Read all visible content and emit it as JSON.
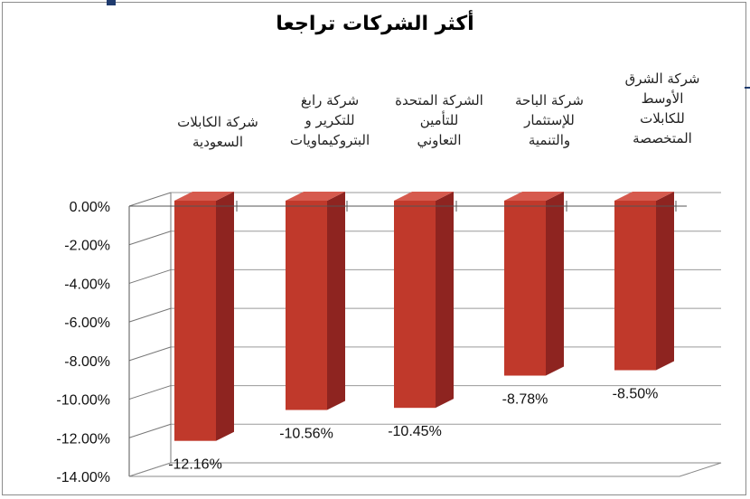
{
  "chart_data": {
    "type": "bar",
    "title": "أكثر الشركات تراجعا",
    "categories": [
      "شركة الكابلات\nالسعودية",
      "شركة رابغ\nللتكرير و\nالبتروكيماويات",
      "الشركة المتحدة\nللتأمين\nالتعاوني",
      "شركة الباحة\nللإستثمار\nوالتنمية",
      "شركة الشرق\nالأوسط\nللكابلات\nالمتخصصة"
    ],
    "values": [
      -12.16,
      -10.56,
      -10.45,
      -8.78,
      -8.5
    ],
    "data_labels": [
      "-12.16%",
      "-10.56%",
      "-10.45%",
      "-8.78%",
      "-8.50%"
    ],
    "y_ticks": [
      "0.00%",
      "-2.00%",
      "-4.00%",
      "-6.00%",
      "-8.00%",
      "-10.00%",
      "-12.00%",
      "-14.00%"
    ],
    "ylim": [
      -14,
      0
    ],
    "grid": true,
    "style": "3d",
    "bar_color": "#c0392b",
    "bar_side_color": "#8e2420",
    "bar_top_color": "#d65a4e"
  }
}
